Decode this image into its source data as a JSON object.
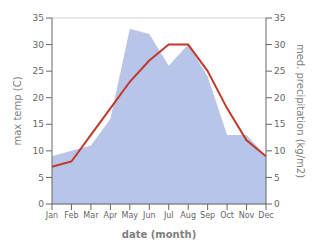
{
  "chart_data": {
    "type": "line",
    "xlabel": "date (month)",
    "ylabel": "max temp (C)",
    "y2label": "med. precipitation (kg/m2)",
    "categories": [
      "Jan",
      "Feb",
      "Mar",
      "Apr",
      "May",
      "Jun",
      "Jul",
      "Aug",
      "Sep",
      "Oct",
      "Nov",
      "Dec"
    ],
    "series": [
      {
        "type": "area",
        "axis": "y2",
        "color": "#b8c4e8",
        "values": [
          9,
          10,
          11,
          16,
          33,
          32,
          26,
          30,
          24,
          13,
          13,
          9
        ]
      },
      {
        "type": "line",
        "color": "#c0392b",
        "values": [
          7,
          8,
          13,
          18,
          23,
          27,
          30,
          30,
          25,
          18,
          12,
          9
        ]
      }
    ],
    "ylim": [
      0,
      35
    ],
    "yticks": [
      0,
      5,
      10,
      15,
      20,
      25,
      30,
      35
    ],
    "y2lim": [
      0,
      35
    ],
    "y2ticks": [
      0,
      5,
      10,
      15,
      20,
      25,
      30,
      35
    ],
    "grid": true
  }
}
